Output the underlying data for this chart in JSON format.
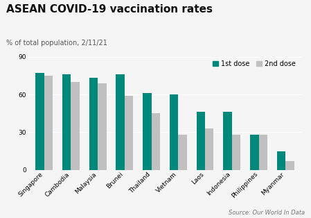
{
  "title": "ASEAN COVID-19 vaccination rates",
  "subtitle": "% of total population, 2/11/21",
  "source": "Source: Our World In Data",
  "countries": [
    "Singapore",
    "Cambodia",
    "Malaysia",
    "Brunei",
    "Thailand",
    "Vietnam",
    "Laos",
    "Indonesia",
    "Philippines",
    "Myanmar"
  ],
  "dose1": [
    77,
    76,
    73,
    76,
    61,
    60,
    46,
    46,
    28,
    15
  ],
  "dose2": [
    75,
    70,
    69,
    59,
    45,
    28,
    33,
    28,
    28,
    7
  ],
  "color_dose1": "#00897b",
  "color_dose2": "#c0c0c0",
  "ylim": [
    0,
    90
  ],
  "yticks": [
    0,
    30,
    60,
    90
  ],
  "bar_width": 0.32,
  "background_color": "#f5f5f5",
  "title_fontsize": 11,
  "subtitle_fontsize": 7,
  "tick_fontsize": 6.5,
  "source_fontsize": 6,
  "legend_fontsize": 7
}
